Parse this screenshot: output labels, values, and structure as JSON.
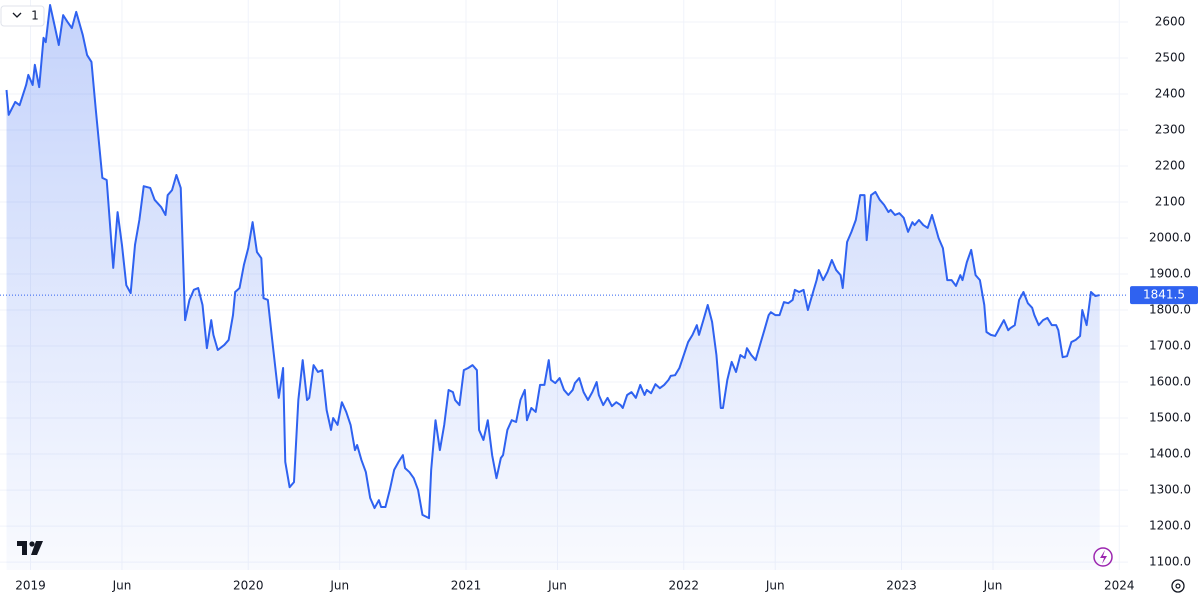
{
  "chart_data": {
    "type": "area-line",
    "interval": "1",
    "color": "#2f62f0",
    "grid": true,
    "xlim": [
      2018.86,
      2024.04
    ],
    "ylim": [
      1078,
      2661
    ],
    "xticks": [
      2019,
      {
        "value": 2019.42,
        "label": "Jun"
      },
      2020,
      {
        "value": 2020.42,
        "label": "Jun"
      },
      2021,
      {
        "value": 2021.42,
        "label": "Jun"
      },
      2022,
      {
        "value": 2022.42,
        "label": "Jun"
      },
      2023,
      {
        "value": 2023.42,
        "label": "Jun"
      },
      2024
    ],
    "yticks": [
      {
        "value": 1100,
        "label": "1100.0"
      },
      {
        "value": 1200,
        "label": "1200.0"
      },
      {
        "value": 1300,
        "label": "1300.0"
      },
      {
        "value": 1400,
        "label": "1400.0"
      },
      {
        "value": 1500,
        "label": "1500.0"
      },
      {
        "value": 1600,
        "label": "1600.0"
      },
      {
        "value": 1700,
        "label": "1700.0"
      },
      {
        "value": 1800,
        "label": "1800.0"
      },
      {
        "value": 1900,
        "label": "1900.0"
      },
      {
        "value": 2000,
        "label": "2000.0"
      },
      2100,
      2200,
      2300,
      2400,
      2500,
      2600
    ],
    "x": [
      2018.89,
      2018.9,
      2018.93,
      2018.95,
      2018.98,
      2018.99,
      2019.01,
      2019.02,
      2019.04,
      2019.06,
      2019.07,
      2019.09,
      2019.11,
      2019.13,
      2019.15,
      2019.17,
      2019.19,
      2019.21,
      2019.24,
      2019.26,
      2019.28,
      2019.3,
      2019.33,
      2019.35,
      2019.38,
      2019.4,
      2019.42,
      2019.44,
      2019.46,
      2019.48,
      2019.5,
      2019.52,
      2019.55,
      2019.57,
      2019.6,
      2019.62,
      2019.63,
      2019.65,
      2019.67,
      2019.69,
      2019.71,
      2019.73,
      2019.75,
      2019.77,
      2019.79,
      2019.81,
      2019.83,
      2019.84,
      2019.86,
      2019.89,
      2019.91,
      2019.93,
      2019.94,
      2019.96,
      2019.98,
      2020.0,
      2020.02,
      2020.04,
      2020.06,
      2020.07,
      2020.09,
      2020.11,
      2020.14,
      2020.16,
      2020.17,
      2020.19,
      2020.21,
      2020.23,
      2020.25,
      2020.27,
      2020.28,
      2020.3,
      2020.32,
      2020.34,
      2020.36,
      2020.38,
      2020.39,
      2020.41,
      2020.43,
      2020.45,
      2020.47,
      2020.49,
      2020.5,
      2020.52,
      2020.54,
      2020.56,
      2020.58,
      2020.6,
      2020.61,
      2020.63,
      2020.65,
      2020.67,
      2020.69,
      2020.71,
      2020.72,
      2020.74,
      2020.76,
      2020.78,
      2020.8,
      2020.83,
      2020.84,
      2020.86,
      2020.88,
      2020.9,
      2020.92,
      2020.94,
      2020.95,
      2020.97,
      2020.99,
      2021.01,
      2021.03,
      2021.05,
      2021.06,
      2021.08,
      2021.1,
      2021.12,
      2021.14,
      2021.16,
      2021.17,
      2021.19,
      2021.21,
      2021.23,
      2021.25,
      2021.27,
      2021.28,
      2021.3,
      2021.32,
      2021.34,
      2021.36,
      2021.38,
      2021.39,
      2021.41,
      2021.43,
      2021.45,
      2021.47,
      2021.49,
      2021.5,
      2021.52,
      2021.54,
      2021.56,
      2021.58,
      2021.6,
      2021.61,
      2021.63,
      2021.65,
      2021.67,
      2021.69,
      2021.71,
      2021.72,
      2021.74,
      2021.76,
      2021.78,
      2021.8,
      2021.82,
      2021.83,
      2021.85,
      2021.87,
      2021.89,
      2021.91,
      2021.93,
      2021.94,
      2021.96,
      2021.98,
      2022.0,
      2022.02,
      2022.04,
      2022.06,
      2022.07,
      2022.09,
      2022.11,
      2022.13,
      2022.15,
      2022.17,
      2022.18,
      2022.2,
      2022.22,
      2022.24,
      2022.26,
      2022.28,
      2022.29,
      2022.31,
      2022.33,
      2022.35,
      2022.37,
      2022.39,
      2022.4,
      2022.42,
      2022.44,
      2022.46,
      2022.48,
      2022.5,
      2022.51,
      2022.53,
      2022.55,
      2022.57,
      2022.59,
      2022.61,
      2022.62,
      2022.64,
      2022.66,
      2022.68,
      2022.7,
      2022.72,
      2022.73,
      2022.75,
      2022.77,
      2022.79,
      2022.81,
      2022.83,
      2022.84,
      2022.86,
      2022.88,
      2022.9,
      2022.92,
      2022.94,
      2022.95,
      2022.97,
      2022.99,
      2023.01,
      2023.03,
      2023.05,
      2023.06,
      2023.08,
      2023.1,
      2023.12,
      2023.14,
      2023.16,
      2023.17,
      2023.19,
      2023.21,
      2023.23,
      2023.25,
      2023.27,
      2023.28,
      2023.3,
      2023.32,
      2023.34,
      2023.36,
      2023.38,
      2023.39,
      2023.41,
      2023.43,
      2023.45,
      2023.47,
      2023.49,
      2023.5,
      2023.52,
      2023.54,
      2023.56,
      2023.58,
      2023.6,
      2023.61,
      2023.63,
      2023.65,
      2023.67,
      2023.69,
      2023.71,
      2023.72,
      2023.74,
      2023.76,
      2023.78,
      2023.8,
      2023.82,
      2023.83,
      2023.85,
      2023.87,
      2023.89,
      2023.91
    ],
    "values": [
      2411,
      2342,
      2378,
      2369,
      2425,
      2453,
      2425,
      2481,
      2419,
      2556,
      2544,
      2647,
      2592,
      2536,
      2619,
      2600,
      2583,
      2628,
      2564,
      2508,
      2489,
      2356,
      2167,
      2161,
      1917,
      2072,
      1981,
      1869,
      1847,
      1981,
      2050,
      2144,
      2139,
      2106,
      2086,
      2064,
      2119,
      2133,
      2175,
      2139,
      1772,
      1828,
      1856,
      1861,
      1814,
      1694,
      1772,
      1731,
      1689,
      1703,
      1717,
      1786,
      1850,
      1861,
      1925,
      1972,
      2044,
      1961,
      1944,
      1833,
      1828,
      1717,
      1556,
      1639,
      1378,
      1308,
      1322,
      1550,
      1661,
      1550,
      1556,
      1647,
      1628,
      1633,
      1522,
      1467,
      1500,
      1481,
      1544,
      1517,
      1481,
      1411,
      1425,
      1383,
      1350,
      1278,
      1250,
      1272,
      1253,
      1253,
      1300,
      1356,
      1378,
      1397,
      1361,
      1350,
      1333,
      1300,
      1231,
      1222,
      1356,
      1494,
      1411,
      1481,
      1578,
      1572,
      1550,
      1536,
      1633,
      1639,
      1647,
      1633,
      1467,
      1439,
      1494,
      1397,
      1333,
      1389,
      1397,
      1467,
      1494,
      1489,
      1550,
      1578,
      1494,
      1528,
      1517,
      1592,
      1592,
      1661,
      1606,
      1597,
      1611,
      1578,
      1564,
      1578,
      1597,
      1611,
      1572,
      1550,
      1572,
      1600,
      1564,
      1536,
      1556,
      1533,
      1544,
      1536,
      1528,
      1564,
      1572,
      1556,
      1592,
      1564,
      1578,
      1569,
      1594,
      1583,
      1592,
      1606,
      1617,
      1619,
      1639,
      1675,
      1711,
      1731,
      1758,
      1731,
      1772,
      1814,
      1767,
      1675,
      1528,
      1528,
      1606,
      1656,
      1628,
      1675,
      1667,
      1694,
      1675,
      1661,
      1703,
      1744,
      1786,
      1794,
      1786,
      1786,
      1822,
      1819,
      1828,
      1856,
      1850,
      1856,
      1800,
      1842,
      1883,
      1911,
      1883,
      1906,
      1939,
      1911,
      1897,
      1861,
      1989,
      2017,
      2050,
      2119,
      2119,
      1994,
      2119,
      2128,
      2106,
      2092,
      2072,
      2078,
      2064,
      2069,
      2056,
      2017,
      2044,
      2036,
      2050,
      2036,
      2028,
      2064,
      2022,
      2000,
      1972,
      1883,
      1883,
      1867,
      1897,
      1883,
      1933,
      1967,
      1897,
      1883,
      1814,
      1739,
      1731,
      1728,
      1750,
      1772,
      1744,
      1750,
      1758,
      1828,
      1850,
      1819,
      1806,
      1786,
      1758,
      1772,
      1778,
      1758,
      1758,
      1744,
      1669,
      1672,
      1711,
      1717,
      1728,
      1800,
      1758,
      1850,
      1839,
      1841.5
    ]
  }
}
